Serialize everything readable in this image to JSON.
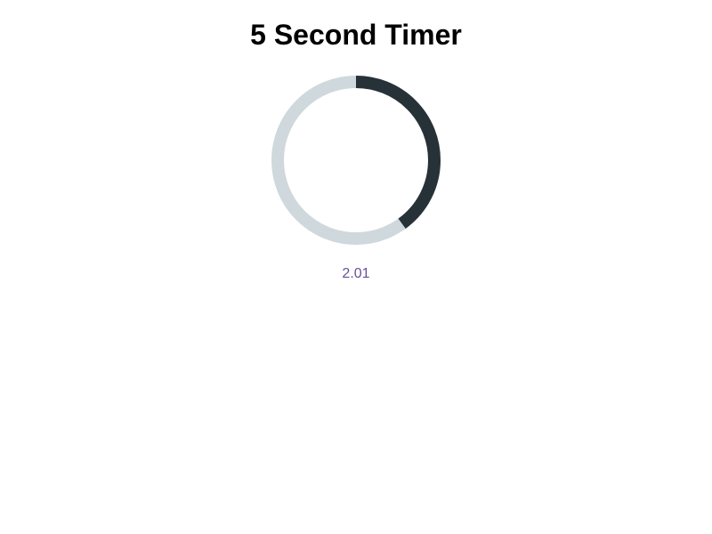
{
  "title": "5 Second Timer",
  "timer": {
    "readout": "2.01",
    "progress_fraction": 0.4,
    "track_color": "#cfd8dc",
    "progress_color": "#263238",
    "readout_color": "#6a4f9a"
  }
}
